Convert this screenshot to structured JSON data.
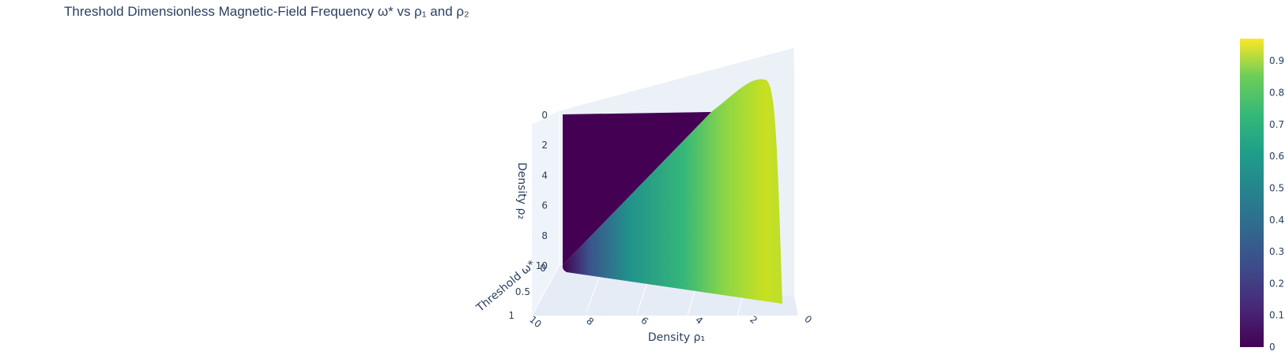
{
  "chart_data": {
    "type": "surface",
    "title": "Threshold Dimensionless Magnetic-Field Frequency ω* vs ρ₁ and ρ₂",
    "axes": {
      "x": {
        "label": "Density ρ₁",
        "range": [
          0,
          10
        ],
        "ticks": [
          "0",
          "2",
          "4",
          "6",
          "8",
          "10"
        ]
      },
      "y": {
        "label": "Density ρ₂",
        "range": [
          0,
          10
        ],
        "ticks": [
          "0",
          "2",
          "4",
          "6",
          "8",
          "10"
        ]
      },
      "z": {
        "label": "Threshold ω*",
        "range": [
          0,
          1
        ],
        "ticks": [
          "0",
          "0.5",
          "1"
        ]
      }
    },
    "surface": {
      "description": "ω* is 0 where ρ₂ > ρ₁·k; rises toward ~0.97 as ρ₁ → 0",
      "x": [
        0,
        2,
        4,
        6,
        8,
        10
      ],
      "y": [
        0,
        2,
        4,
        6,
        8,
        10
      ],
      "z_at_y10": [
        0.97,
        0.82,
        0.6,
        0.4,
        0.15,
        0
      ],
      "z_at_y0": [
        0.97,
        0,
        0,
        0,
        0,
        0
      ]
    },
    "colorscale": "Viridis",
    "colorbar": {
      "range": [
        0,
        0.97
      ],
      "ticks": [
        "0",
        "0.1",
        "0.2",
        "0.3",
        "0.4",
        "0.5",
        "0.6",
        "0.7",
        "0.8",
        "0.9"
      ]
    },
    "colors": {
      "c0": "#440154",
      "c1": "#31688e",
      "c2": "#21918c",
      "c3": "#35b779",
      "c4": "#90d743",
      "c5": "#fde725",
      "scene_bg": "#e5ecf6",
      "grid": "#ffffff"
    }
  }
}
